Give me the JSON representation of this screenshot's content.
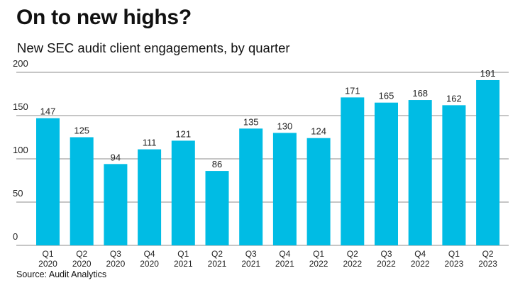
{
  "chart_data": {
    "type": "bar",
    "title": "On to new highs?",
    "subtitle": "New SEC audit client engagements, by quarter",
    "source": "Source: Audit Analytics",
    "xlabel": "",
    "ylabel": "",
    "ylim": [
      0,
      200
    ],
    "yticks": [
      0,
      50,
      100,
      150,
      200
    ],
    "grid": true,
    "categories": [
      [
        "Q1",
        "2020"
      ],
      [
        "Q2",
        "2020"
      ],
      [
        "Q3",
        "2020"
      ],
      [
        "Q4",
        "2020"
      ],
      [
        "Q1",
        "2021"
      ],
      [
        "Q2",
        "2021"
      ],
      [
        "Q3",
        "2021"
      ],
      [
        "Q4",
        "2021"
      ],
      [
        "Q1",
        "2022"
      ],
      [
        "Q2",
        "2022"
      ],
      [
        "Q3",
        "2022"
      ],
      [
        "Q4",
        "2022"
      ],
      [
        "Q1",
        "2023"
      ],
      [
        "Q2",
        "2023"
      ]
    ],
    "values": [
      147,
      125,
      94,
      111,
      121,
      86,
      135,
      130,
      124,
      171,
      165,
      168,
      162,
      191
    ],
    "bar_color": "#00bce4",
    "grid_color": "#8c8c8c"
  }
}
